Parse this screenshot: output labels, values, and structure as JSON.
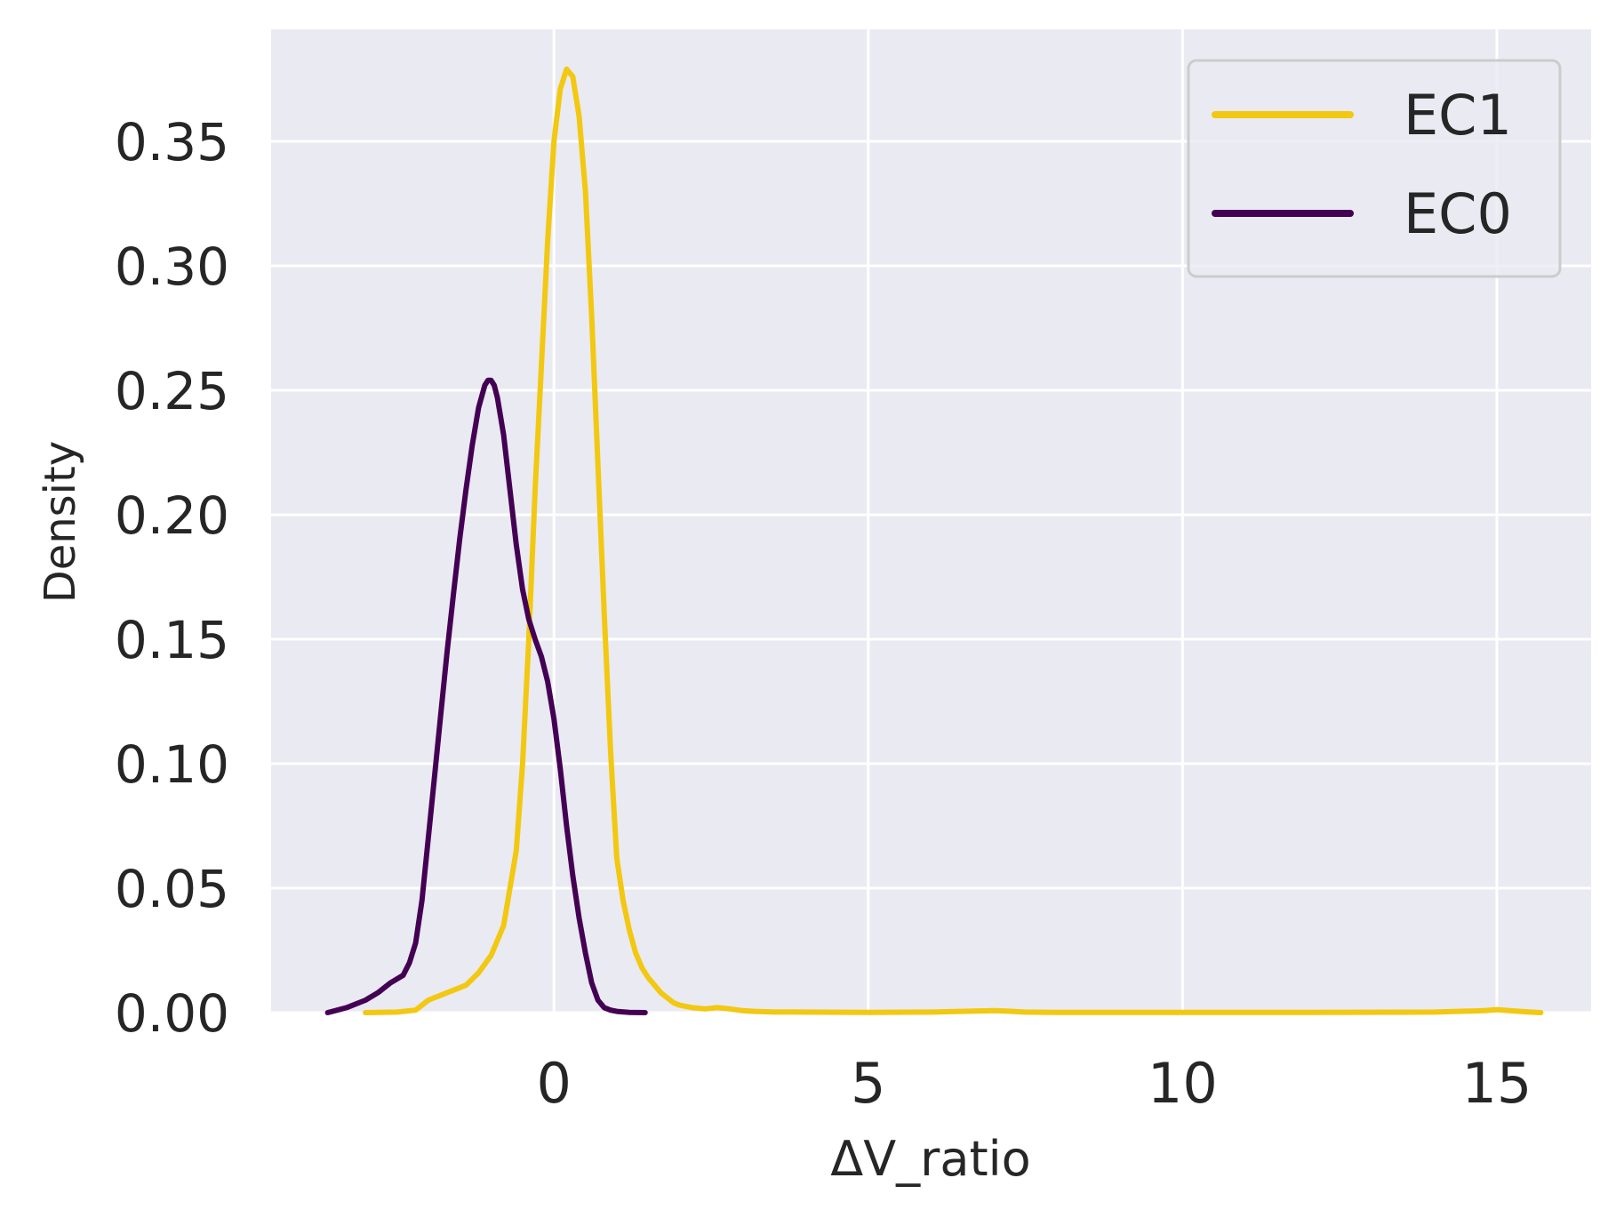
{
  "chart_data": {
    "type": "line",
    "title": "",
    "xlabel": "ΔV_ratio",
    "ylabel": "Density",
    "xlim": [
      -4.5,
      16.5
    ],
    "ylim": [
      0,
      0.395
    ],
    "xticks": [
      0,
      5,
      10,
      15
    ],
    "yticks": [
      0.0,
      0.05,
      0.1,
      0.15,
      0.2,
      0.25,
      0.3,
      0.35
    ],
    "xtick_labels": [
      "0",
      "5",
      "10",
      "15"
    ],
    "ytick_labels": [
      "0.00",
      "0.05",
      "0.10",
      "0.15",
      "0.20",
      "0.25",
      "0.30",
      "0.35"
    ],
    "grid": true,
    "legend": {
      "position": "top-right"
    },
    "colors": {
      "background": "#EAEAF2",
      "grid": "#FFFFFF",
      "text": "#262626"
    },
    "series": [
      {
        "name": "EC1",
        "color": "#F2C811",
        "x": [
          -3.0,
          -2.5,
          -2.2,
          -2.0,
          -1.7,
          -1.4,
          -1.2,
          -1.0,
          -0.8,
          -0.6,
          -0.5,
          -0.4,
          -0.3,
          -0.2,
          -0.1,
          0.0,
          0.1,
          0.2,
          0.3,
          0.4,
          0.5,
          0.6,
          0.7,
          0.8,
          0.9,
          1.0,
          1.1,
          1.2,
          1.3,
          1.4,
          1.5,
          1.6,
          1.7,
          1.8,
          1.9,
          2.0,
          2.2,
          2.4,
          2.6,
          2.8,
          3.0,
          3.2,
          3.5,
          4.0,
          5.0,
          6.0,
          7.0,
          7.2,
          7.5,
          8.0,
          10.0,
          12.0,
          14.0,
          14.8,
          15.0,
          15.2,
          15.5,
          15.7
        ],
        "y": [
          0.0,
          0.0002,
          0.001,
          0.005,
          0.008,
          0.011,
          0.016,
          0.023,
          0.035,
          0.065,
          0.1,
          0.15,
          0.21,
          0.26,
          0.31,
          0.35,
          0.371,
          0.379,
          0.376,
          0.36,
          0.33,
          0.28,
          0.22,
          0.16,
          0.105,
          0.062,
          0.045,
          0.033,
          0.024,
          0.018,
          0.014,
          0.011,
          0.008,
          0.006,
          0.004,
          0.003,
          0.002,
          0.0015,
          0.002,
          0.0015,
          0.0008,
          0.0005,
          0.0003,
          0.0002,
          0.0001,
          0.0002,
          0.0008,
          0.0006,
          0.0002,
          0.0001,
          0.0001,
          0.0001,
          0.0002,
          0.0008,
          0.0012,
          0.0008,
          0.0003,
          0.0
        ]
      },
      {
        "name": "EC0",
        "color": "#440154",
        "x": [
          -3.6,
          -3.3,
          -3.0,
          -2.8,
          -2.6,
          -2.4,
          -2.3,
          -2.2,
          -2.1,
          -2.0,
          -1.9,
          -1.8,
          -1.7,
          -1.6,
          -1.5,
          -1.4,
          -1.3,
          -1.2,
          -1.1,
          -1.05,
          -1.0,
          -0.95,
          -0.9,
          -0.8,
          -0.7,
          -0.6,
          -0.5,
          -0.4,
          -0.3,
          -0.2,
          -0.1,
          0.0,
          0.1,
          0.2,
          0.3,
          0.4,
          0.5,
          0.6,
          0.7,
          0.8,
          0.9,
          1.0,
          1.2,
          1.45
        ],
        "y": [
          0.0,
          0.002,
          0.005,
          0.008,
          0.012,
          0.015,
          0.02,
          0.028,
          0.045,
          0.07,
          0.095,
          0.12,
          0.145,
          0.168,
          0.19,
          0.21,
          0.228,
          0.243,
          0.252,
          0.254,
          0.254,
          0.252,
          0.247,
          0.232,
          0.21,
          0.188,
          0.17,
          0.158,
          0.15,
          0.143,
          0.133,
          0.118,
          0.098,
          0.075,
          0.055,
          0.038,
          0.024,
          0.012,
          0.005,
          0.002,
          0.001,
          0.0005,
          0.0001,
          0.0
        ]
      }
    ]
  }
}
